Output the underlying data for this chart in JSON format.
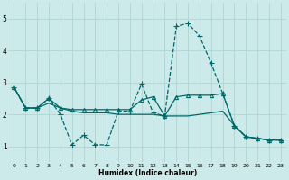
{
  "xlabel": "Humidex (Indice chaleur)",
  "bg_color": "#cceaea",
  "grid_color": "#b0d4d4",
  "line_color": "#006868",
  "xlim": [
    -0.5,
    23.5
  ],
  "ylim": [
    0.5,
    5.5
  ],
  "yticks": [
    1,
    2,
    3,
    4,
    5
  ],
  "xticks": [
    0,
    1,
    2,
    3,
    4,
    5,
    6,
    7,
    8,
    9,
    10,
    11,
    12,
    13,
    14,
    15,
    16,
    17,
    18,
    19,
    20,
    21,
    22,
    23
  ],
  "series": [
    {
      "x": [
        0,
        1,
        2,
        3,
        4,
        5,
        6,
        7,
        8,
        9,
        10,
        11,
        12,
        13,
        14,
        15,
        16,
        17,
        18,
        19,
        20,
        21,
        22,
        23
      ],
      "y": [
        2.85,
        2.2,
        2.2,
        2.5,
        2.0,
        1.05,
        1.35,
        1.05,
        1.05,
        2.1,
        2.1,
        2.95,
        2.05,
        1.95,
        4.75,
        4.85,
        4.45,
        3.6,
        2.65,
        1.65,
        1.3,
        1.25,
        1.2,
        1.2
      ],
      "marker": "+",
      "markersize": 4,
      "linewidth": 0.9,
      "linestyle": "--"
    },
    {
      "x": [
        0,
        1,
        2,
        3,
        4,
        5,
        6,
        7,
        8,
        9,
        10,
        11,
        12,
        13,
        14,
        15,
        16,
        17,
        18,
        19,
        20,
        21,
        22,
        23
      ],
      "y": [
        2.85,
        2.2,
        2.2,
        2.5,
        2.2,
        2.15,
        2.15,
        2.15,
        2.15,
        2.15,
        2.15,
        2.45,
        2.55,
        1.95,
        2.55,
        2.6,
        2.6,
        2.6,
        2.65,
        1.65,
        1.3,
        1.25,
        1.2,
        1.2
      ],
      "marker": "^",
      "markersize": 3,
      "linewidth": 0.9,
      "linestyle": "-"
    },
    {
      "x": [
        0,
        1,
        2,
        3,
        4,
        5,
        6,
        7,
        8,
        9,
        10,
        11,
        12,
        13,
        14,
        15,
        16,
        17,
        18,
        19,
        20,
        21,
        22,
        23
      ],
      "y": [
        2.85,
        2.2,
        2.2,
        2.35,
        2.2,
        2.1,
        2.05,
        2.05,
        2.05,
        2.0,
        2.0,
        2.0,
        2.0,
        1.95,
        1.95,
        1.95,
        2.0,
        2.05,
        2.1,
        1.65,
        1.3,
        1.25,
        1.2,
        1.2
      ],
      "marker": null,
      "markersize": 0,
      "linewidth": 0.9,
      "linestyle": "-"
    }
  ]
}
